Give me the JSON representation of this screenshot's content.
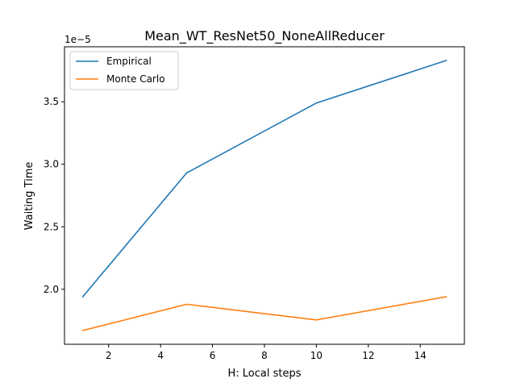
{
  "chart_data": {
    "type": "line",
    "title": "Mean_WT_ResNet50_NoneAllReducer",
    "xlabel": "H: Local steps",
    "ylabel": "Waiting Time",
    "offset_label": "1e−5",
    "x": [
      1,
      5,
      10,
      15
    ],
    "xlim": [
      0.3,
      15.7
    ],
    "ylim": [
      1.56e-05,
      3.94e-05
    ],
    "xticks": [
      2,
      4,
      6,
      8,
      10,
      12,
      14
    ],
    "xtick_labels": [
      "2",
      "4",
      "6",
      "8",
      "10",
      "12",
      "14"
    ],
    "yticks": [
      2e-05,
      2.5e-05,
      3e-05,
      3.5e-05
    ],
    "ytick_labels": [
      "2.0",
      "2.5",
      "3.0",
      "3.5"
    ],
    "grid": false,
    "legend_position": "upper-left",
    "series": [
      {
        "name": "Empirical",
        "color": "#1f77b4",
        "values": [
          1.94e-05,
          2.93e-05,
          3.49e-05,
          3.83e-05
        ]
      },
      {
        "name": "Monte Carlo",
        "color": "#ff7f0e",
        "values": [
          1.67e-05,
          1.88e-05,
          1.755e-05,
          1.94e-05
        ]
      }
    ]
  }
}
